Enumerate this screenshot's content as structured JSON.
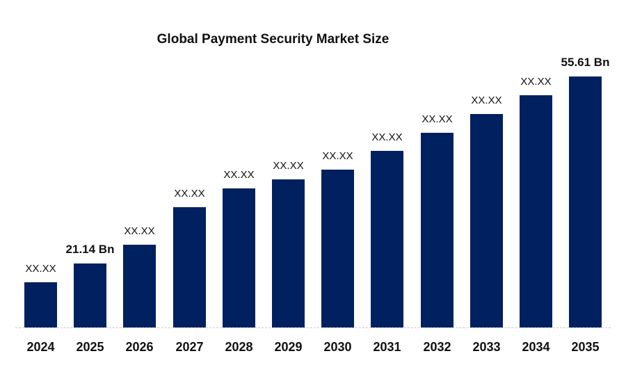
{
  "chart_data": {
    "type": "bar",
    "title": "Global Payment Security Market Size",
    "xlabel": "",
    "ylabel": "",
    "categories": [
      "2024",
      "2025",
      "2026",
      "2027",
      "2028",
      "2029",
      "2030",
      "2031",
      "2032",
      "2033",
      "2034",
      "2035"
    ],
    "values": [
      17.68,
      21.14,
      24.6,
      31.52,
      34.97,
      36.64,
      38.43,
      41.89,
      45.22,
      48.68,
      52.14,
      55.61
    ],
    "value_labels": [
      "XX.XX",
      "21.14 Bn",
      "XX.XX",
      "XX.XX",
      "XX.XX",
      "XX.XX",
      "XX.XX",
      "XX.XX",
      "XX.XX",
      "XX.XX",
      "XX.XX",
      "55.61 Bn"
    ],
    "highlighted_labels": [
      1,
      11
    ],
    "unit": "Bn",
    "grid": false,
    "legend": null,
    "bar_color": "#002060"
  },
  "title": "Global Payment Security Market Size"
}
